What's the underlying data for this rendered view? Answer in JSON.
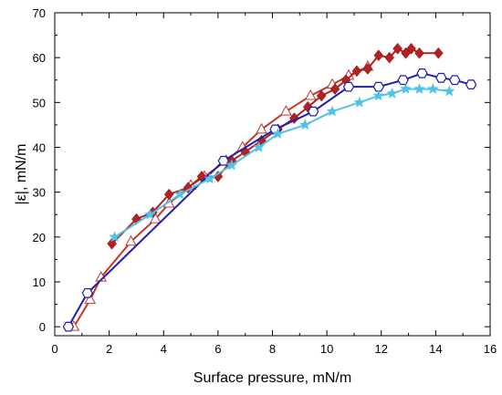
{
  "chart_data": {
    "type": "scatter",
    "title": "",
    "xlabel": "Surface pressure, mN/m",
    "ylabel": "|ε|, mN/m",
    "xlim": [
      0,
      16
    ],
    "ylim": [
      -2,
      70
    ],
    "x_ticks": [
      0,
      2,
      4,
      6,
      8,
      10,
      12,
      14,
      16
    ],
    "y_ticks": [
      0,
      10,
      20,
      30,
      40,
      50,
      60,
      70
    ],
    "grid": false,
    "legend": "none",
    "series": [
      {
        "color": "#c0392b",
        "marker": "triangle-open",
        "points": [
          [
            0.7,
            0
          ],
          [
            1.3,
            6
          ],
          [
            1.7,
            11
          ],
          [
            2.8,
            19
          ],
          [
            3.7,
            24
          ],
          [
            4.2,
            27.5
          ],
          [
            5.0,
            31.5
          ],
          [
            5.5,
            33.5
          ],
          [
            6.3,
            37
          ],
          [
            6.9,
            40
          ],
          [
            7.6,
            44
          ],
          [
            8.5,
            48
          ],
          [
            9.4,
            51.5
          ],
          [
            10.2,
            54
          ],
          [
            10.8,
            56
          ],
          [
            11.5,
            58
          ]
        ]
      },
      {
        "color": "#b22222",
        "marker": "diamond-filled",
        "points": [
          [
            2.1,
            18.5
          ],
          [
            3.0,
            24
          ],
          [
            3.6,
            25.5
          ],
          [
            4.2,
            29.5
          ],
          [
            4.9,
            31
          ],
          [
            5.4,
            33.5
          ],
          [
            6.0,
            33.5
          ],
          [
            6.5,
            37
          ],
          [
            7.0,
            39
          ],
          [
            7.6,
            41.5
          ],
          [
            8.2,
            44
          ],
          [
            8.8,
            46.5
          ],
          [
            9.3,
            49
          ],
          [
            9.8,
            51.5
          ],
          [
            10.3,
            53
          ],
          [
            10.7,
            55
          ],
          [
            11.1,
            57
          ],
          [
            11.5,
            57.5
          ],
          [
            11.9,
            60.5
          ],
          [
            12.3,
            60
          ],
          [
            12.6,
            62
          ],
          [
            12.9,
            61
          ],
          [
            13.1,
            62
          ],
          [
            13.4,
            61
          ],
          [
            14.1,
            61
          ]
        ]
      },
      {
        "color": "#1f1fa8",
        "marker": "hexagon-open",
        "points": [
          [
            0.5,
            0
          ],
          [
            1.2,
            7.5
          ],
          [
            6.2,
            37
          ],
          [
            8.1,
            44
          ],
          [
            9.5,
            48
          ],
          [
            10.8,
            53.5
          ],
          [
            11.9,
            53.5
          ],
          [
            12.8,
            55
          ],
          [
            13.5,
            56.5
          ],
          [
            14.2,
            55.5
          ],
          [
            14.7,
            55
          ],
          [
            15.3,
            54
          ]
        ]
      },
      {
        "color": "#4fc3e6",
        "marker": "star-filled",
        "points": [
          [
            2.2,
            20
          ],
          [
            3.5,
            25
          ],
          [
            4.6,
            29.5
          ],
          [
            5.7,
            33
          ],
          [
            6.5,
            36
          ],
          [
            7.5,
            40
          ],
          [
            8.2,
            43
          ],
          [
            9.2,
            45
          ],
          [
            10.2,
            48
          ],
          [
            11.2,
            50
          ],
          [
            11.9,
            51.5
          ],
          [
            12.4,
            52
          ],
          [
            12.9,
            53
          ],
          [
            13.4,
            53
          ],
          [
            13.9,
            53
          ],
          [
            14.5,
            52.5
          ]
        ]
      }
    ]
  }
}
